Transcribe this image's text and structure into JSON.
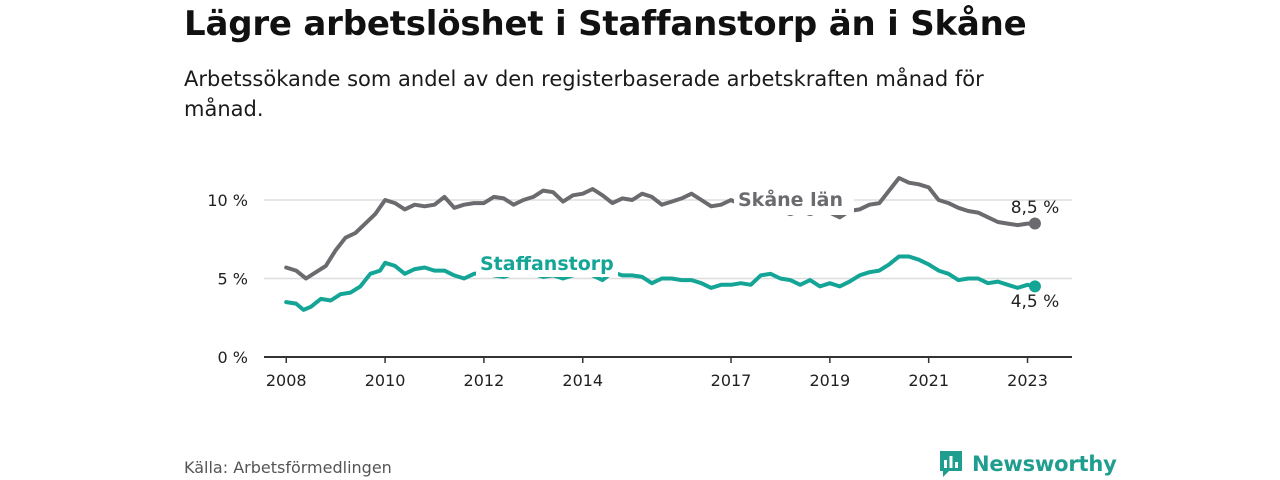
{
  "header": {
    "title": "Lägre arbetslöshet i Staffanstorp än i Skåne",
    "subtitle": "Arbetssökande som andel av den registerbaserade arbetskraften månad för månad."
  },
  "footer": {
    "source": "Källa: Arbetsförmedlingen",
    "brand": "Newsworthy"
  },
  "colors": {
    "skane": "#6b6b6f",
    "staffanstorp": "#14a596",
    "grid": "#dddddd",
    "axis": "#333333"
  },
  "chart_data": {
    "type": "line",
    "title": "Lägre arbetslöshet i Staffanstorp än i Skåne",
    "xlabel": "",
    "ylabel": "",
    "xlim": [
      2007.55,
      2023.9
    ],
    "ylim": [
      0,
      10
    ],
    "grid": true,
    "x_ticks": [
      2008,
      2010,
      2012,
      2014,
      2017,
      2019,
      2021,
      2023
    ],
    "x_tick_labels": [
      "2008",
      "2010",
      "2012",
      "2014",
      "2017",
      "2019",
      "2021",
      "2023"
    ],
    "y_ticks": [
      0,
      5,
      10
    ],
    "y_tick_labels": [
      "0 %",
      "5 %",
      "10 %"
    ],
    "series": [
      {
        "name": "Skåne län",
        "color": "#6b6b6f",
        "end_label": "8,5 %",
        "points": [
          [
            2008.0,
            5.7
          ],
          [
            2008.2,
            5.5
          ],
          [
            2008.4,
            5.0
          ],
          [
            2008.6,
            5.4
          ],
          [
            2008.8,
            5.8
          ],
          [
            2009.0,
            6.8
          ],
          [
            2009.2,
            7.6
          ],
          [
            2009.4,
            7.9
          ],
          [
            2009.6,
            8.5
          ],
          [
            2009.8,
            9.1
          ],
          [
            2010.0,
            10.0
          ],
          [
            2010.2,
            9.8
          ],
          [
            2010.4,
            9.4
          ],
          [
            2010.6,
            9.7
          ],
          [
            2010.8,
            9.6
          ],
          [
            2011.0,
            9.7
          ],
          [
            2011.2,
            10.2
          ],
          [
            2011.4,
            9.5
          ],
          [
            2011.6,
            9.7
          ],
          [
            2011.8,
            9.8
          ],
          [
            2012.0,
            9.8
          ],
          [
            2012.2,
            10.2
          ],
          [
            2012.4,
            10.1
          ],
          [
            2012.6,
            9.7
          ],
          [
            2012.8,
            10.0
          ],
          [
            2013.0,
            10.2
          ],
          [
            2013.2,
            10.6
          ],
          [
            2013.4,
            10.5
          ],
          [
            2013.6,
            9.9
          ],
          [
            2013.8,
            10.3
          ],
          [
            2014.0,
            10.4
          ],
          [
            2014.2,
            10.7
          ],
          [
            2014.4,
            10.3
          ],
          [
            2014.6,
            9.8
          ],
          [
            2014.8,
            10.1
          ],
          [
            2015.0,
            10.0
          ],
          [
            2015.2,
            10.4
          ],
          [
            2015.4,
            10.2
          ],
          [
            2015.6,
            9.7
          ],
          [
            2015.8,
            9.9
          ],
          [
            2016.0,
            10.1
          ],
          [
            2016.2,
            10.4
          ],
          [
            2016.4,
            10.0
          ],
          [
            2016.6,
            9.6
          ],
          [
            2016.8,
            9.7
          ],
          [
            2017.0,
            10.0
          ],
          [
            2017.2,
            9.7
          ],
          [
            2017.4,
            9.6
          ],
          [
            2017.6,
            9.5
          ],
          [
            2017.8,
            9.4
          ],
          [
            2018.0,
            9.3
          ],
          [
            2018.2,
            9.1
          ],
          [
            2018.4,
            9.3
          ],
          [
            2018.6,
            9.1
          ],
          [
            2018.8,
            9.3
          ],
          [
            2019.0,
            9.2
          ],
          [
            2019.2,
            8.9
          ],
          [
            2019.4,
            9.3
          ],
          [
            2019.6,
            9.4
          ],
          [
            2019.8,
            9.7
          ],
          [
            2020.0,
            9.8
          ],
          [
            2020.2,
            10.6
          ],
          [
            2020.4,
            11.4
          ],
          [
            2020.6,
            11.1
          ],
          [
            2020.8,
            11.0
          ],
          [
            2021.0,
            10.8
          ],
          [
            2021.2,
            10.0
          ],
          [
            2021.4,
            9.8
          ],
          [
            2021.6,
            9.5
          ],
          [
            2021.8,
            9.3
          ],
          [
            2022.0,
            9.2
          ],
          [
            2022.2,
            8.9
          ],
          [
            2022.4,
            8.6
          ],
          [
            2022.6,
            8.5
          ],
          [
            2022.8,
            8.4
          ],
          [
            2023.0,
            8.5
          ],
          [
            2023.15,
            8.5
          ]
        ]
      },
      {
        "name": "Staffanstorp",
        "color": "#14a596",
        "end_label": "4,5 %",
        "points": [
          [
            2008.0,
            3.5
          ],
          [
            2008.2,
            3.4
          ],
          [
            2008.35,
            3.0
          ],
          [
            2008.5,
            3.2
          ],
          [
            2008.7,
            3.7
          ],
          [
            2008.9,
            3.6
          ],
          [
            2009.1,
            4.0
          ],
          [
            2009.3,
            4.1
          ],
          [
            2009.5,
            4.5
          ],
          [
            2009.7,
            5.3
          ],
          [
            2009.9,
            5.5
          ],
          [
            2010.0,
            6.0
          ],
          [
            2010.2,
            5.8
          ],
          [
            2010.4,
            5.3
          ],
          [
            2010.6,
            5.6
          ],
          [
            2010.8,
            5.7
          ],
          [
            2011.0,
            5.5
          ],
          [
            2011.2,
            5.5
          ],
          [
            2011.4,
            5.2
          ],
          [
            2011.6,
            5.0
          ],
          [
            2011.8,
            5.3
          ],
          [
            2012.0,
            5.4
          ],
          [
            2012.2,
            5.2
          ],
          [
            2012.4,
            5.1
          ],
          [
            2012.6,
            5.3
          ],
          [
            2012.8,
            5.4
          ],
          [
            2013.0,
            5.3
          ],
          [
            2013.2,
            5.1
          ],
          [
            2013.4,
            5.2
          ],
          [
            2013.6,
            5.0
          ],
          [
            2013.8,
            5.2
          ],
          [
            2014.0,
            5.4
          ],
          [
            2014.2,
            5.2
          ],
          [
            2014.4,
            4.9
          ],
          [
            2014.6,
            5.4
          ],
          [
            2014.8,
            5.2
          ],
          [
            2015.0,
            5.2
          ],
          [
            2015.2,
            5.1
          ],
          [
            2015.4,
            4.7
          ],
          [
            2015.6,
            5.0
          ],
          [
            2015.8,
            5.0
          ],
          [
            2016.0,
            4.9
          ],
          [
            2016.2,
            4.9
          ],
          [
            2016.4,
            4.7
          ],
          [
            2016.6,
            4.4
          ],
          [
            2016.8,
            4.6
          ],
          [
            2017.0,
            4.6
          ],
          [
            2017.2,
            4.7
          ],
          [
            2017.4,
            4.6
          ],
          [
            2017.6,
            5.2
          ],
          [
            2017.8,
            5.3
          ],
          [
            2018.0,
            5.0
          ],
          [
            2018.2,
            4.9
          ],
          [
            2018.4,
            4.6
          ],
          [
            2018.6,
            4.9
          ],
          [
            2018.8,
            4.5
          ],
          [
            2019.0,
            4.7
          ],
          [
            2019.2,
            4.5
          ],
          [
            2019.4,
            4.8
          ],
          [
            2019.6,
            5.2
          ],
          [
            2019.8,
            5.4
          ],
          [
            2020.0,
            5.5
          ],
          [
            2020.2,
            5.9
          ],
          [
            2020.4,
            6.4
          ],
          [
            2020.6,
            6.4
          ],
          [
            2020.8,
            6.2
          ],
          [
            2021.0,
            5.9
          ],
          [
            2021.2,
            5.5
          ],
          [
            2021.4,
            5.3
          ],
          [
            2021.6,
            4.9
          ],
          [
            2021.8,
            5.0
          ],
          [
            2022.0,
            5.0
          ],
          [
            2022.2,
            4.7
          ],
          [
            2022.4,
            4.8
          ],
          [
            2022.6,
            4.6
          ],
          [
            2022.8,
            4.4
          ],
          [
            2023.0,
            4.6
          ],
          [
            2023.15,
            4.5
          ]
        ]
      }
    ]
  }
}
